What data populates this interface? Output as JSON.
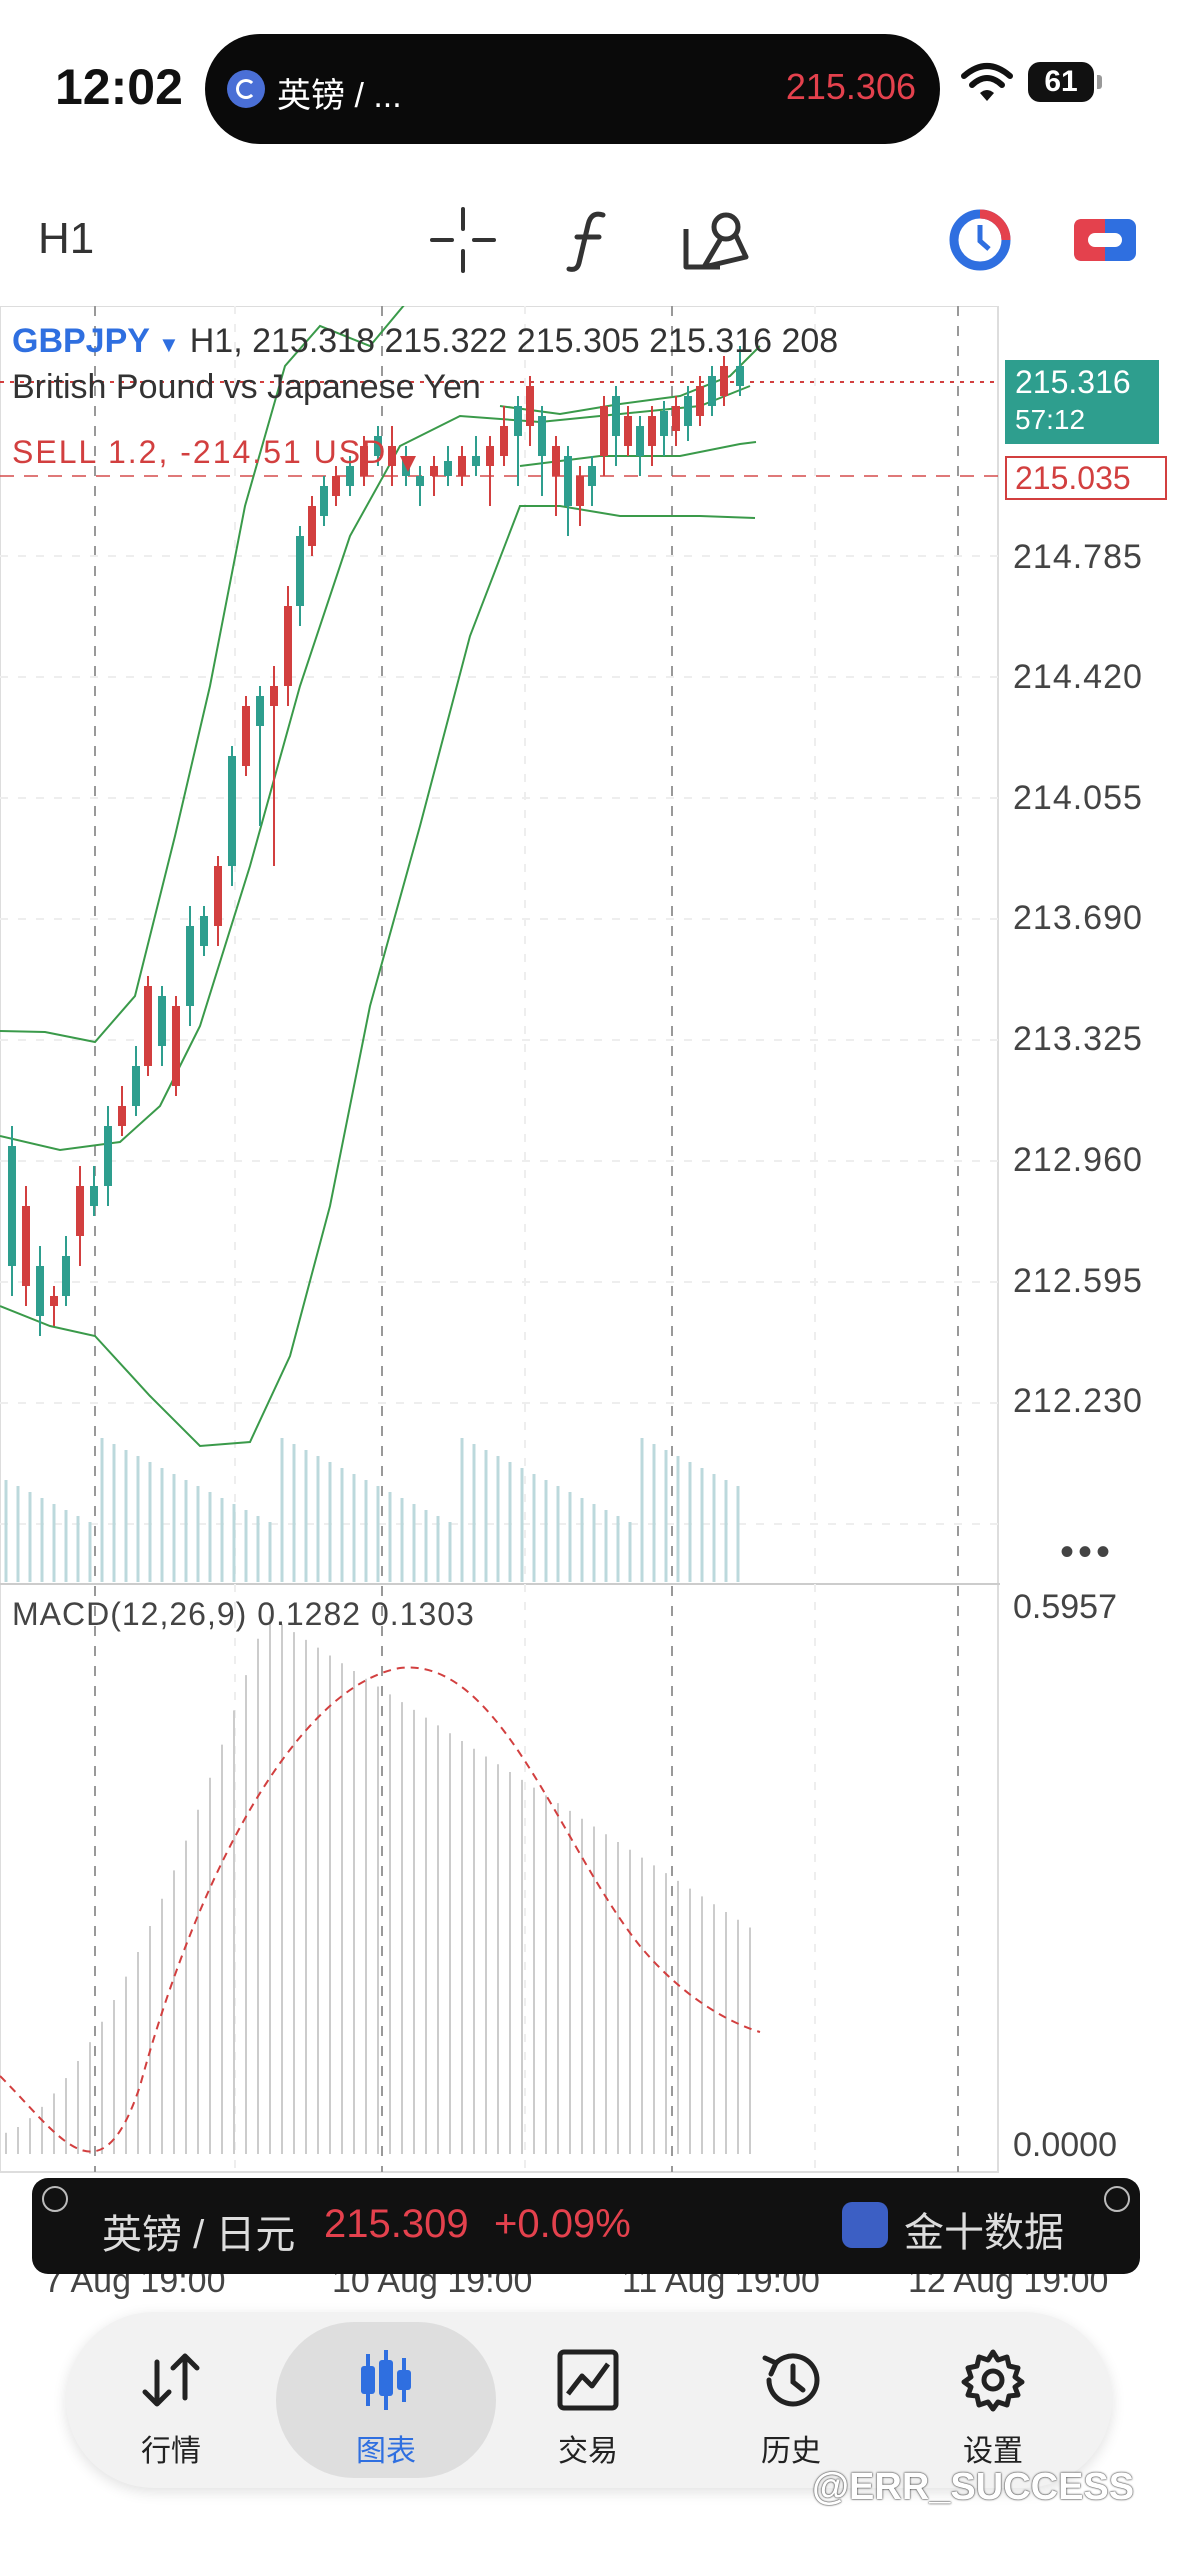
{
  "status_bar": {
    "time": "12:02",
    "island_title": "英镑 / ...",
    "island_price": "215.306",
    "battery": "61"
  },
  "toolbar": {
    "timeframe": "H1"
  },
  "chart": {
    "symbol": "GBPJPY",
    "ohlc_text": "H1, 215.318 215.322 215.305 215.316 208",
    "instrument_name": "British Pound vs Japanese Yen",
    "trade_line": "SELL 1.2, -214.51 USD",
    "bid_price": "215.316",
    "bid_timer": "57:12",
    "order_price": "215.035",
    "price_axis": [
      "214.785",
      "214.420",
      "214.055",
      "213.690",
      "213.325",
      "212.960",
      "212.595",
      "212.230"
    ],
    "macd_label": "MACD(12,26,9)  0.1282  0.1303",
    "macd_top": "0.5957",
    "macd_zero": "0.0000",
    "date_axis": [
      "7 Aug 19:00",
      "10 Aug 19:00",
      "11 Aug 19:00",
      "12 Aug 19:00"
    ],
    "colors": {
      "bull": "#d23f3f",
      "bear": "#2e9e8e",
      "band": "#3a9a4a"
    }
  },
  "ticker": {
    "name": "英镑 / 日元",
    "price": "215.309",
    "change": "+0.09%",
    "brand": "金十数据"
  },
  "tabs": [
    {
      "label": "行情",
      "icon": "quotes-arrows-icon"
    },
    {
      "label": "图表",
      "icon": "candlestick-icon",
      "active": true
    },
    {
      "label": "交易",
      "icon": "trade-chart-icon"
    },
    {
      "label": "历史",
      "icon": "history-clock-icon"
    },
    {
      "label": "设置",
      "icon": "gear-icon"
    }
  ],
  "watermark": "@ERR_SUCCESS"
}
